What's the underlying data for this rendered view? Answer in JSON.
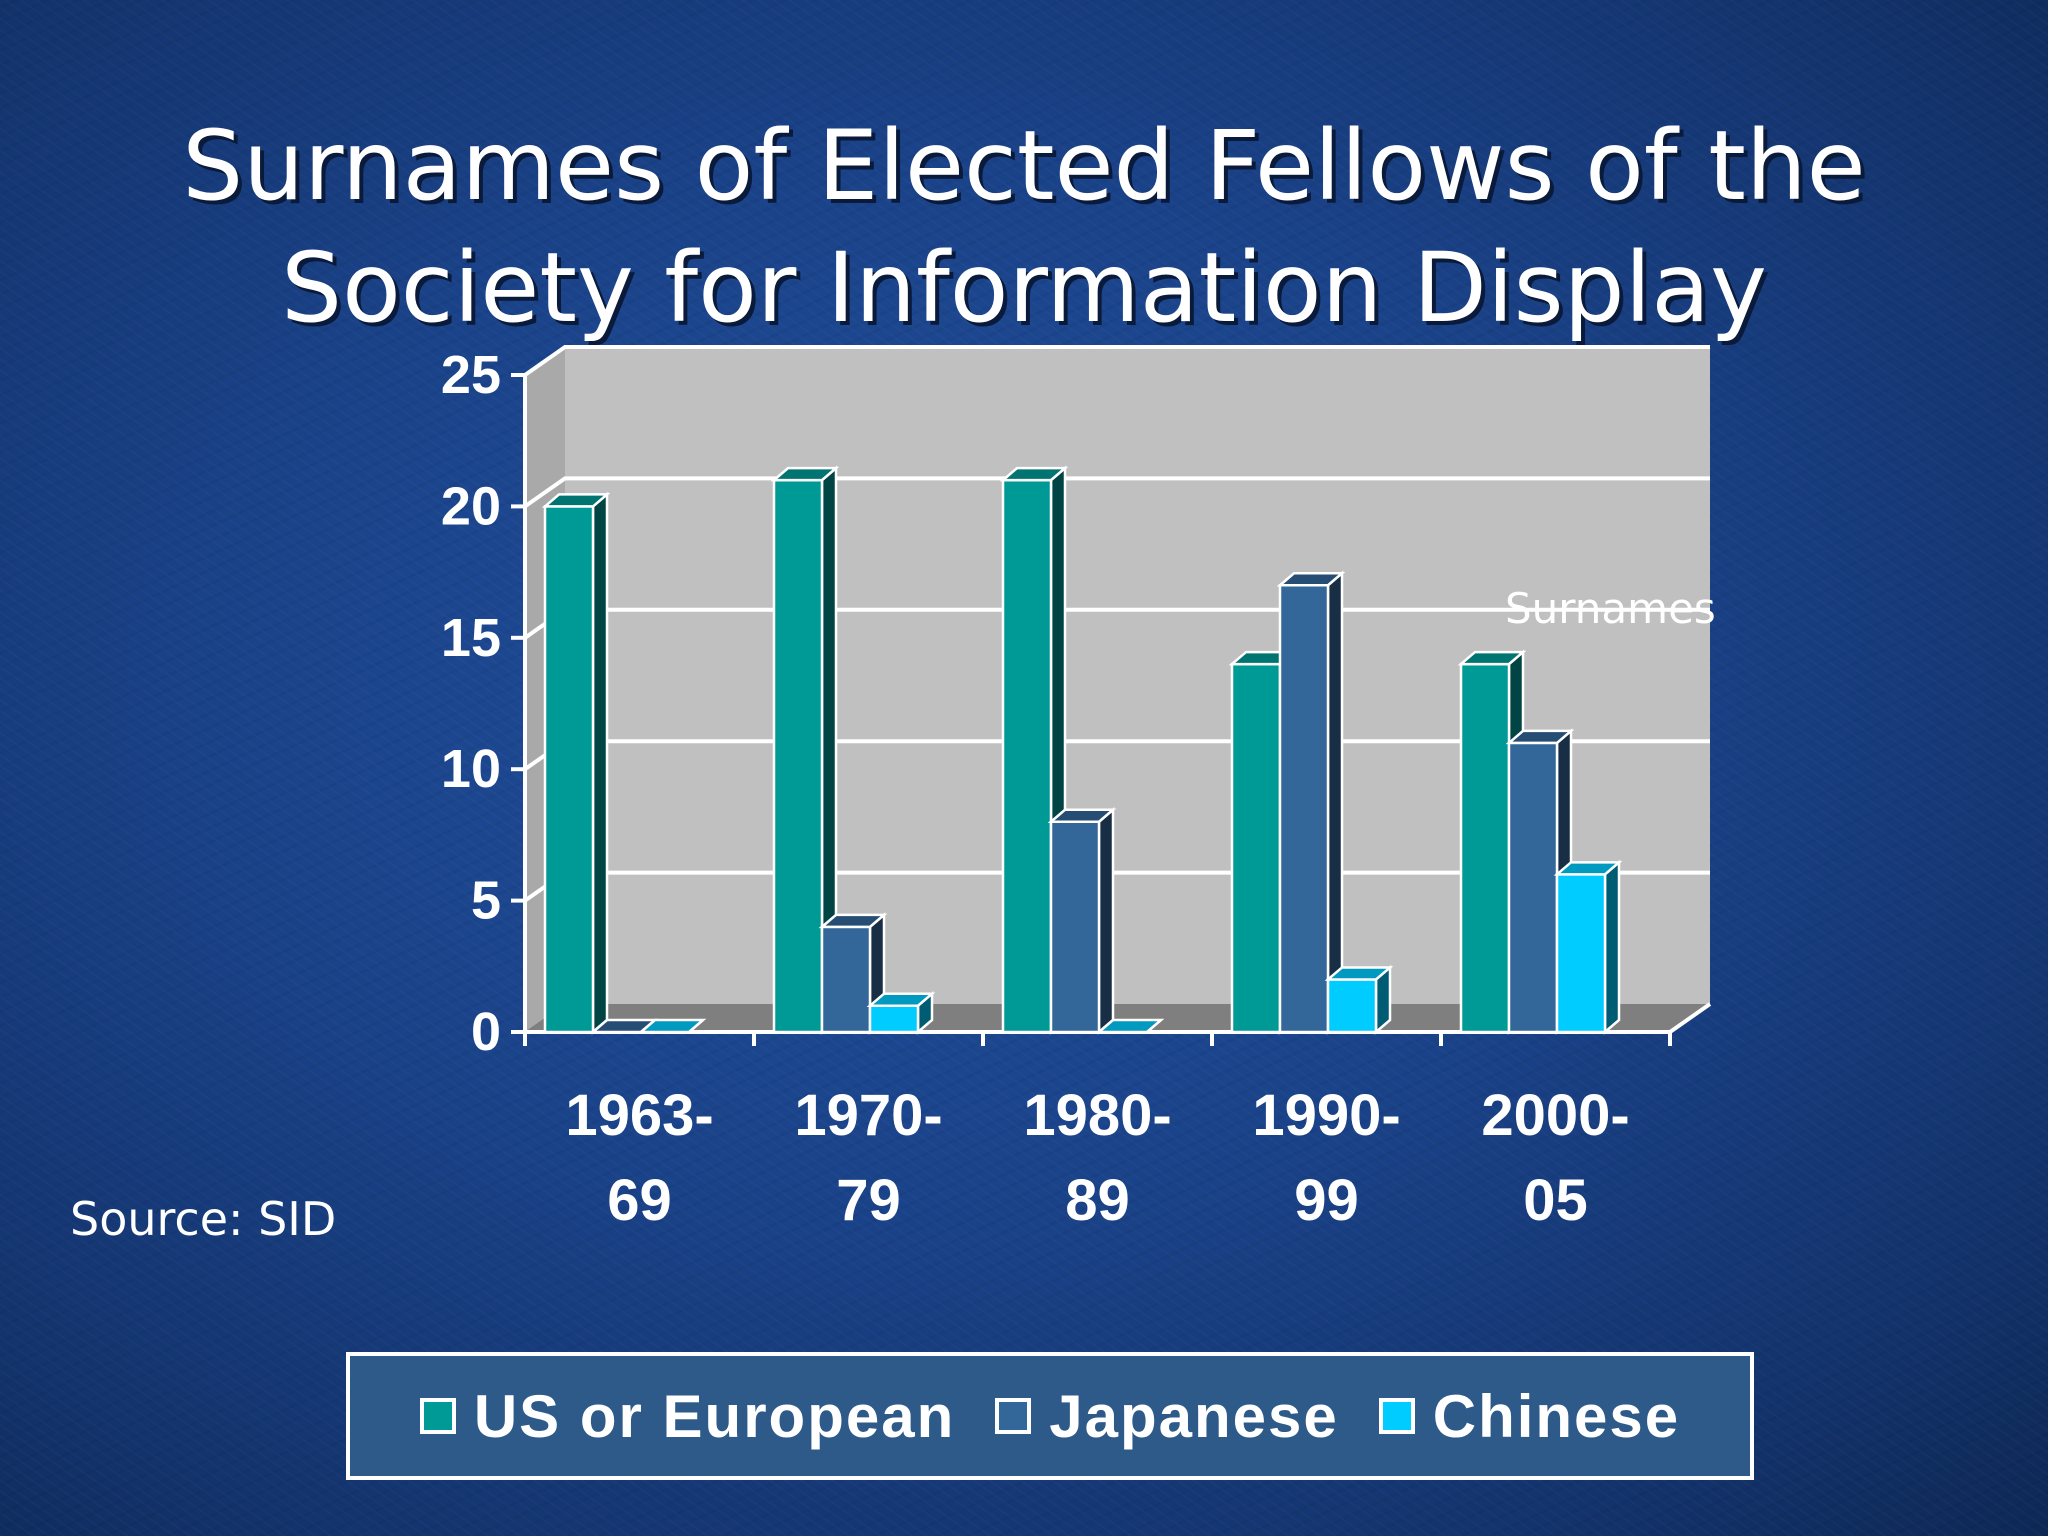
{
  "slide": {
    "title_line1": "Surnames of Elected Fellows of the",
    "title_line2": "Society for Information Display",
    "source": "Source: SID"
  },
  "chart_data": {
    "type": "bar",
    "title": "Surnames of Elected Fellows of the Society for Information Display",
    "annotation": "Surnames",
    "categories": [
      "1963-\n69",
      "1970-\n79",
      "1980-\n89",
      "1990-\n99",
      "2000-\n05"
    ],
    "series": [
      {
        "name": "US or European",
        "color": "#009a96",
        "values": [
          20,
          21,
          21,
          14,
          14
        ]
      },
      {
        "name": "Japanese",
        "color": "#336699",
        "values": [
          0,
          4,
          8,
          17,
          11
        ]
      },
      {
        "name": "Chinese",
        "color": "#00ccff",
        "values": [
          0,
          1,
          0,
          2,
          6
        ]
      }
    ],
    "ylim": [
      0,
      25
    ],
    "yticks": [
      0,
      5,
      10,
      15,
      20,
      25
    ],
    "grid": true,
    "legend_position": "bottom",
    "style": "3d-bar",
    "plot_background": "#c0c0c0"
  }
}
